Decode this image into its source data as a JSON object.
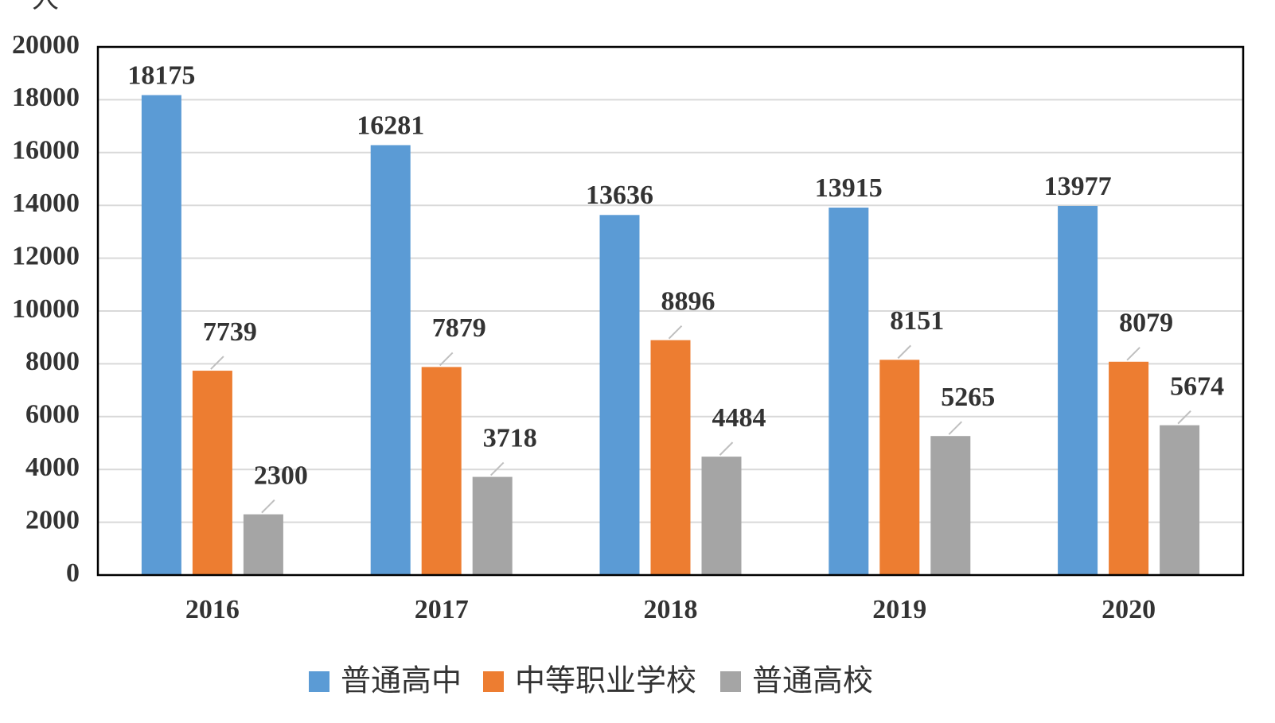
{
  "chart_data": {
    "type": "bar",
    "unit_label": "人",
    "categories": [
      "2016",
      "2017",
      "2018",
      "2019",
      "2020"
    ],
    "series": [
      {
        "name": "普通高中",
        "color": "#5b9bd5",
        "values": [
          18175,
          16281,
          13636,
          13915,
          13977
        ]
      },
      {
        "name": "中等职业学校",
        "color": "#ed7d31",
        "values": [
          7739,
          7879,
          8896,
          8151,
          8079
        ]
      },
      {
        "name": "普通高校",
        "color": "#a5a5a5",
        "values": [
          2300,
          3718,
          4484,
          5265,
          5674
        ]
      }
    ],
    "ylim": [
      0,
      20000
    ],
    "yticks": [
      "0",
      "2000",
      "4000",
      "6000",
      "8000",
      "10000",
      "12000",
      "14000",
      "16000",
      "18000",
      "20000"
    ],
    "grid": true,
    "legend_position": "bottom",
    "title": "",
    "xlabel": "",
    "ylabel": ""
  }
}
